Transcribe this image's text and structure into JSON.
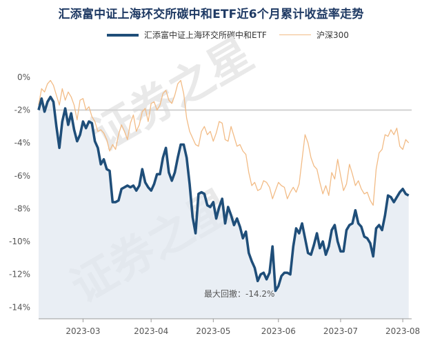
{
  "chart_data": {
    "type": "line",
    "title": "汇添富中证上海环交所碳中和ETF近6个月累计收益率走势",
    "xlabel": "",
    "ylabel": "",
    "y_tick_labels": [
      "0%",
      "-2%",
      "-4%",
      "-6%",
      "-8%",
      "-10%",
      "-12%",
      "-14%"
    ],
    "y_ticks": [
      0,
      -2,
      -4,
      -6,
      -8,
      -10,
      -12,
      -14
    ],
    "ylim": [
      -14.7,
      1.0
    ],
    "x_tick_labels": [
      "2023-03",
      "2023-04",
      "2023-05",
      "2023-06",
      "2023-07",
      "2023-08"
    ],
    "x_ticks": [
      15,
      38,
      59,
      81,
      102,
      123
    ],
    "xlim": [
      0,
      126
    ],
    "reference_line": -2,
    "legend_position": "top",
    "grid": false,
    "annotation": "最大回撤：-14.2%",
    "watermark": [
      "证券之星",
      "证券之星"
    ],
    "series": [
      {
        "name": "汇添富中证上海环交所碳中和ETF",
        "color": "#1f4e79",
        "x": [
          0,
          1,
          2,
          3,
          4,
          5,
          6,
          7,
          8,
          9,
          10,
          11,
          12,
          13,
          14,
          15,
          16,
          17,
          18,
          19,
          20,
          21,
          22,
          23,
          24,
          25,
          26,
          27,
          28,
          29,
          30,
          31,
          32,
          33,
          34,
          35,
          36,
          37,
          38,
          39,
          40,
          41,
          42,
          43,
          44,
          45,
          46,
          47,
          48,
          49,
          50,
          51,
          52,
          53,
          54,
          55,
          56,
          57,
          58,
          59,
          60,
          61,
          62,
          63,
          64,
          65,
          66,
          67,
          68,
          69,
          70,
          71,
          72,
          73,
          74,
          75,
          76,
          77,
          78,
          79,
          80,
          81,
          82,
          83,
          84,
          85,
          86,
          87,
          88,
          89,
          90,
          91,
          92,
          93,
          94,
          95,
          96,
          97,
          98,
          99,
          100,
          101,
          102,
          103,
          104,
          105,
          106,
          107,
          108,
          109,
          110,
          111,
          112,
          113,
          114,
          115,
          116,
          117,
          118,
          119,
          120,
          121,
          122,
          123,
          124,
          125
        ],
        "values": [
          -2.0,
          -1.3,
          -2.1,
          -1.5,
          -1.2,
          -1.5,
          -3.0,
          -4.3,
          -2.7,
          -1.9,
          -2.9,
          -2.2,
          -3.2,
          -3.9,
          -3.5,
          -2.7,
          -3.1,
          -2.7,
          -2.8,
          -3.9,
          -4.3,
          -5.3,
          -5.0,
          -5.6,
          -5.7,
          -7.6,
          -7.6,
          -7.5,
          -6.8,
          -6.7,
          -6.6,
          -6.7,
          -6.6,
          -6.9,
          -6.6,
          -5.6,
          -6.4,
          -6.7,
          -6.9,
          -6.5,
          -5.9,
          -5.9,
          -4.9,
          -4.3,
          -5.8,
          -6.3,
          -5.8,
          -4.9,
          -4.1,
          -4.1,
          -4.9,
          -6.5,
          -8.5,
          -9.5,
          -7.1,
          -7.0,
          -7.1,
          -7.8,
          -7.9,
          -7.6,
          -8.6,
          -7.9,
          -7.4,
          -8.9,
          -7.9,
          -8.4,
          -9.0,
          -8.6,
          -9.1,
          -9.8,
          -9.4,
          -10.7,
          -11.2,
          -11.6,
          -12.4,
          -12.0,
          -11.9,
          -12.3,
          -11.9,
          -10.3,
          -13.0,
          -12.7,
          -12.1,
          -11.9,
          -11.9,
          -12.0,
          -10.3,
          -9.2,
          -9.5,
          -8.9,
          -9.8,
          -10.7,
          -10.8,
          -10.2,
          -9.5,
          -10.4,
          -10.0,
          -10.8,
          -10.3,
          -9.3,
          -9.0,
          -10.0,
          -10.6,
          -10.6,
          -9.3,
          -9.0,
          -8.9,
          -8.1,
          -8.9,
          -9.1,
          -9.7,
          -9.8,
          -10.1,
          -10.9,
          -9.2,
          -9.0,
          -9.3,
          -8.4,
          -7.2,
          -7.3,
          -7.6,
          -7.3,
          -7.0,
          -6.8,
          -7.1,
          -7.2
        ]
      },
      {
        "name": "沪深300",
        "color": "#f2bb85",
        "x": [
          0,
          1,
          2,
          3,
          4,
          5,
          6,
          7,
          8,
          9,
          10,
          11,
          12,
          13,
          14,
          15,
          16,
          17,
          18,
          19,
          20,
          21,
          22,
          23,
          24,
          25,
          26,
          27,
          28,
          29,
          30,
          31,
          32,
          33,
          34,
          35,
          36,
          37,
          38,
          39,
          40,
          41,
          42,
          43,
          44,
          45,
          46,
          47,
          48,
          49,
          50,
          51,
          52,
          53,
          54,
          55,
          56,
          57,
          58,
          59,
          60,
          61,
          62,
          63,
          64,
          65,
          66,
          67,
          68,
          69,
          70,
          71,
          72,
          73,
          74,
          75,
          76,
          77,
          78,
          79,
          80,
          81,
          82,
          83,
          84,
          85,
          86,
          87,
          88,
          89,
          90,
          91,
          92,
          93,
          94,
          95,
          96,
          97,
          98,
          99,
          100,
          101,
          102,
          103,
          104,
          105,
          106,
          107,
          108,
          109,
          110,
          111,
          112,
          113,
          114,
          115,
          116,
          117,
          118,
          119,
          120,
          121,
          122,
          123,
          124,
          125
        ],
        "values": [
          -1.7,
          -0.7,
          -0.9,
          -0.4,
          -0.2,
          -0.5,
          -1.1,
          -1.7,
          -0.7,
          -1.4,
          -0.9,
          -1.2,
          -1.7,
          -2.6,
          -1.4,
          -1.3,
          -2.0,
          -1.8,
          -2.4,
          -2.7,
          -3.3,
          -3.2,
          -3.4,
          -3.8,
          -4.5,
          -4.1,
          -4.4,
          -3.5,
          -2.9,
          -3.3,
          -3.8,
          -2.8,
          -2.3,
          -3.3,
          -2.9,
          -2.1,
          -1.9,
          -2.7,
          -1.6,
          -1.5,
          -2.0,
          -1.7,
          -1.0,
          -0.8,
          -1.4,
          -1.6,
          -1.1,
          -0.4,
          -0.2,
          -1.0,
          -2.5,
          -3.3,
          -3.7,
          -4.1,
          -4.2,
          -3.3,
          -3.0,
          -3.5,
          -3.3,
          -3.9,
          -3.4,
          -2.7,
          -2.8,
          -3.8,
          -3.9,
          -3.0,
          -3.6,
          -4.2,
          -4.1,
          -4.5,
          -4.7,
          -5.8,
          -6.6,
          -6.4,
          -6.9,
          -6.8,
          -6.3,
          -6.4,
          -6.7,
          -7.4,
          -6.9,
          -6.4,
          -6.6,
          -6.7,
          -7.4,
          -7.0,
          -6.7,
          -7.0,
          -6.5,
          -5.0,
          -3.5,
          -4.0,
          -4.9,
          -5.4,
          -5.6,
          -6.4,
          -7.1,
          -6.6,
          -7.2,
          -5.8,
          -6.2,
          -5.0,
          -6.0,
          -6.9,
          -6.5,
          -5.3,
          -5.9,
          -6.6,
          -6.3,
          -6.8,
          -7.1,
          -7.0,
          -7.5,
          -7.8,
          -5.6,
          -4.6,
          -4.4,
          -3.5,
          -3.6,
          -3.2,
          -3.5,
          -3.1,
          -4.2,
          -4.4,
          -3.8,
          -4.0
        ]
      }
    ]
  }
}
